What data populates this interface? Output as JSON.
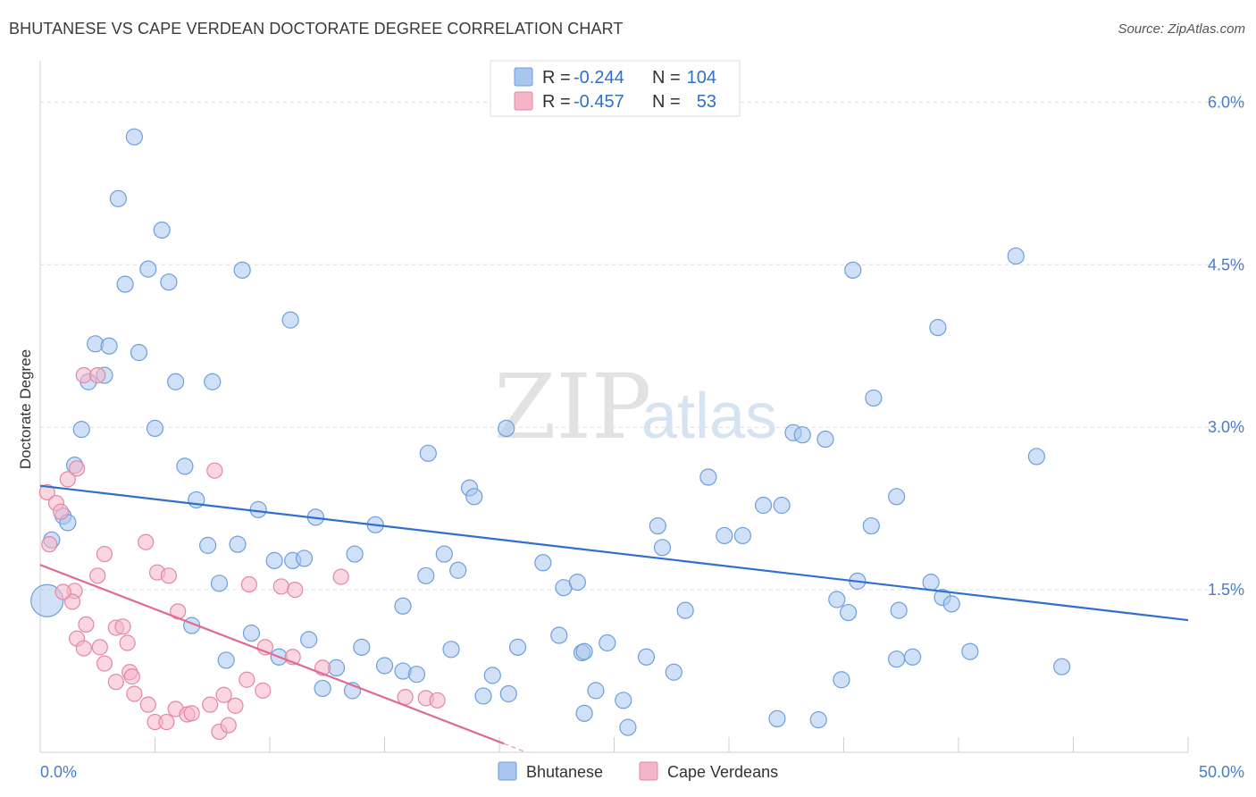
{
  "header": {
    "title": "BHUTANESE VS CAPE VERDEAN DOCTORATE DEGREE CORRELATION CHART",
    "source": "Source: ZipAtlas.com"
  },
  "watermark": {
    "zip": "ZIP",
    "atlas": "atlas"
  },
  "legend": {
    "rows": [
      {
        "r_label": "R =",
        "r_value": "-0.244",
        "n_label": "N =",
        "n_value": "104",
        "color": "#a9c6ef"
      },
      {
        "r_label": "R =",
        "r_value": "-0.457",
        "n_label": "N =",
        "n_value": "53",
        "color": "#f5b5c8"
      }
    ]
  },
  "bottom_legend": [
    {
      "label": "Bhutanese",
      "color": "#a9c6ef"
    },
    {
      "label": "Cape Verdeans",
      "color": "#f5b5c8"
    }
  ],
  "chart_data": {
    "type": "scatter",
    "title": "BHUTANESE VS CAPE VERDEAN DOCTORATE DEGREE CORRELATION CHART",
    "xlabel": "",
    "ylabel": "Doctorate Degree",
    "xlim": [
      0,
      50
    ],
    "ylim": [
      0,
      6.3
    ],
    "x_tick_labels": [
      "0.0%",
      "50.0%"
    ],
    "y_ticks": [
      1.5,
      3.0,
      4.5,
      6.0
    ],
    "y_tick_labels": [
      "1.5%",
      "3.0%",
      "4.5%",
      "6.0%"
    ],
    "grid": true,
    "series": [
      {
        "name": "Bhutanese",
        "color": "#a9c6ef",
        "stroke": "#6d9fdc",
        "trend": {
          "x": [
            0,
            50
          ],
          "y": [
            2.46,
            1.22
          ],
          "color": "#2f6fcf"
        },
        "points": [
          [
            4.1,
            5.68
          ],
          [
            3.4,
            5.11
          ],
          [
            5.3,
            4.82
          ],
          [
            4.7,
            4.46
          ],
          [
            3.7,
            4.32
          ],
          [
            5.6,
            4.34
          ],
          [
            8.8,
            4.45
          ],
          [
            10.9,
            3.99
          ],
          [
            2.4,
            3.77
          ],
          [
            3.0,
            3.75
          ],
          [
            4.3,
            3.69
          ],
          [
            2.1,
            3.42
          ],
          [
            2.8,
            3.48
          ],
          [
            5.9,
            3.42
          ],
          [
            7.5,
            3.42
          ],
          [
            1.8,
            2.98
          ],
          [
            5.0,
            2.99
          ],
          [
            1.5,
            2.65
          ],
          [
            6.3,
            2.64
          ],
          [
            6.8,
            2.33
          ],
          [
            1.0,
            2.18
          ],
          [
            1.2,
            2.12
          ],
          [
            0.5,
            1.96
          ],
          [
            9.5,
            2.24
          ],
          [
            12.0,
            2.17
          ],
          [
            14.6,
            2.1
          ],
          [
            16.9,
            2.76
          ],
          [
            18.7,
            2.44
          ],
          [
            20.3,
            2.99
          ],
          [
            18.9,
            2.36
          ],
          [
            7.3,
            1.91
          ],
          [
            8.6,
            1.92
          ],
          [
            10.2,
            1.77
          ],
          [
            11.0,
            1.77
          ],
          [
            11.5,
            1.79
          ],
          [
            13.7,
            1.83
          ],
          [
            17.6,
            1.83
          ],
          [
            16.8,
            1.63
          ],
          [
            18.2,
            1.68
          ],
          [
            21.9,
            1.75
          ],
          [
            7.8,
            1.56
          ],
          [
            15.8,
            1.35
          ],
          [
            22.8,
            1.52
          ],
          [
            6.6,
            1.17
          ],
          [
            9.2,
            1.1
          ],
          [
            11.7,
            1.04
          ],
          [
            14.0,
            0.97
          ],
          [
            17.9,
            0.95
          ],
          [
            20.8,
            0.97
          ],
          [
            22.6,
            1.08
          ],
          [
            23.6,
            0.92
          ],
          [
            23.7,
            0.93
          ],
          [
            8.1,
            0.85
          ],
          [
            10.4,
            0.88
          ],
          [
            12.9,
            0.78
          ],
          [
            15.0,
            0.8
          ],
          [
            15.8,
            0.75
          ],
          [
            16.4,
            0.72
          ],
          [
            19.7,
            0.71
          ],
          [
            12.3,
            0.59
          ],
          [
            13.6,
            0.57
          ],
          [
            19.3,
            0.52
          ],
          [
            20.4,
            0.54
          ],
          [
            24.2,
            0.57
          ],
          [
            25.4,
            0.48
          ],
          [
            23.7,
            0.36
          ],
          [
            32.1,
            0.31
          ],
          [
            33.9,
            0.3
          ],
          [
            27.6,
            0.74
          ],
          [
            23.4,
            1.57
          ],
          [
            24.7,
            1.01
          ],
          [
            28.1,
            1.31
          ],
          [
            26.4,
            0.88
          ],
          [
            25.6,
            0.23
          ],
          [
            27.1,
            1.89
          ],
          [
            26.9,
            2.09
          ],
          [
            29.1,
            2.54
          ],
          [
            29.8,
            2.0
          ],
          [
            30.6,
            2.0
          ],
          [
            31.5,
            2.28
          ],
          [
            32.3,
            2.28
          ],
          [
            32.8,
            2.95
          ],
          [
            33.2,
            2.93
          ],
          [
            34.2,
            2.89
          ],
          [
            34.7,
            1.41
          ],
          [
            35.2,
            1.29
          ],
          [
            35.6,
            1.58
          ],
          [
            35.4,
            4.45
          ],
          [
            36.3,
            3.27
          ],
          [
            36.2,
            2.09
          ],
          [
            37.3,
            2.36
          ],
          [
            37.4,
            1.31
          ],
          [
            37.3,
            0.86
          ],
          [
            38.0,
            0.88
          ],
          [
            38.8,
            1.57
          ],
          [
            39.1,
            3.92
          ],
          [
            39.3,
            1.43
          ],
          [
            39.7,
            1.37
          ],
          [
            40.5,
            0.93
          ],
          [
            42.5,
            4.58
          ],
          [
            43.4,
            2.73
          ],
          [
            44.5,
            0.79
          ],
          [
            34.9,
            0.67
          ],
          [
            0.3,
            1.4
          ]
        ]
      },
      {
        "name": "Cape Verdeans",
        "color": "#f5b5c8",
        "stroke": "#e487a5",
        "trend": {
          "x": [
            0,
            20.2
          ],
          "y": [
            1.73,
            0.08
          ],
          "color": "#e06a94"
        },
        "points": [
          [
            0.3,
            2.4
          ],
          [
            0.4,
            1.92
          ],
          [
            0.7,
            2.3
          ],
          [
            0.9,
            2.22
          ],
          [
            1.2,
            2.52
          ],
          [
            1.6,
            2.62
          ],
          [
            1.9,
            3.48
          ],
          [
            2.5,
            3.48
          ],
          [
            2.8,
            1.83
          ],
          [
            2.5,
            1.63
          ],
          [
            1.5,
            1.49
          ],
          [
            1.4,
            1.39
          ],
          [
            1.0,
            1.48
          ],
          [
            2.0,
            1.18
          ],
          [
            1.6,
            1.05
          ],
          [
            1.9,
            0.96
          ],
          [
            2.6,
            0.97
          ],
          [
            2.8,
            0.82
          ],
          [
            3.3,
            1.15
          ],
          [
            3.6,
            1.16
          ],
          [
            3.8,
            1.01
          ],
          [
            3.9,
            0.74
          ],
          [
            4.0,
            0.7
          ],
          [
            3.3,
            0.65
          ],
          [
            4.1,
            0.54
          ],
          [
            4.6,
            1.94
          ],
          [
            4.7,
            0.44
          ],
          [
            5.0,
            0.28
          ],
          [
            5.1,
            1.66
          ],
          [
            5.6,
            1.63
          ],
          [
            5.5,
            0.28
          ],
          [
            5.9,
            0.4
          ],
          [
            6.0,
            1.3
          ],
          [
            6.4,
            0.35
          ],
          [
            6.6,
            0.36
          ],
          [
            7.4,
            0.44
          ],
          [
            7.6,
            2.6
          ],
          [
            7.8,
            0.19
          ],
          [
            8.0,
            0.53
          ],
          [
            8.2,
            0.25
          ],
          [
            8.5,
            0.43
          ],
          [
            9.1,
            1.55
          ],
          [
            9.0,
            0.67
          ],
          [
            9.7,
            0.57
          ],
          [
            9.8,
            0.97
          ],
          [
            10.5,
            1.53
          ],
          [
            11.0,
            0.88
          ],
          [
            11.1,
            1.5
          ],
          [
            12.3,
            0.78
          ],
          [
            13.1,
            1.62
          ],
          [
            15.9,
            0.51
          ],
          [
            16.8,
            0.5
          ],
          [
            17.3,
            0.48
          ]
        ]
      }
    ]
  }
}
